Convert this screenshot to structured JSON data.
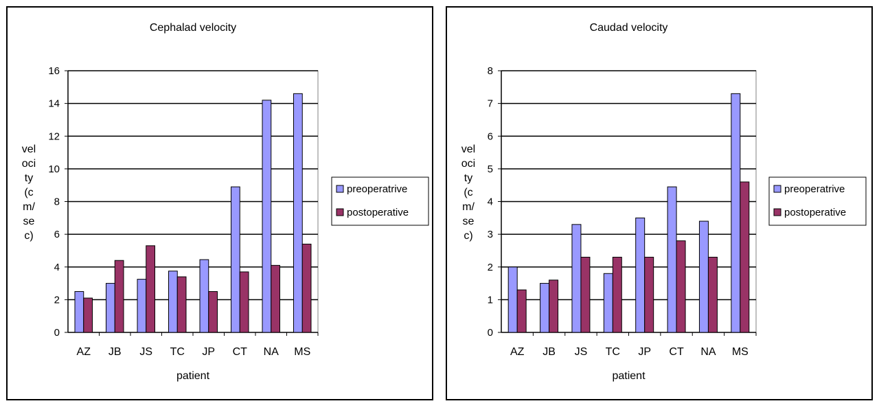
{
  "chart_data": [
    {
      "type": "bar",
      "title": "Cephalad velocity",
      "xlabel": "patient",
      "ylabel_lines": [
        "vel",
        "oci",
        "ty",
        "(c",
        "m/",
        "se",
        "c)"
      ],
      "categories": [
        "AZ",
        "JB",
        "JS",
        "TC",
        "JP",
        "CT",
        "NA",
        "MS"
      ],
      "ylim": [
        0,
        16
      ],
      "yticks": [
        "0",
        "2",
        "4",
        "6",
        "8",
        "10",
        "12",
        "14",
        "16"
      ],
      "ytick_values": [
        0,
        2,
        4,
        6,
        8,
        10,
        12,
        14,
        16
      ],
      "grid": true,
      "legend_position": "right",
      "series": [
        {
          "name": "preoperatrive",
          "color": "#9999ff",
          "values": [
            2.5,
            3.0,
            3.25,
            3.75,
            4.45,
            8.9,
            14.2,
            14.6
          ]
        },
        {
          "name": "postoperative",
          "color": "#993366",
          "values": [
            2.1,
            4.4,
            5.3,
            3.4,
            2.5,
            3.7,
            4.1,
            5.4
          ]
        }
      ]
    },
    {
      "type": "bar",
      "title": "Caudad velocity",
      "xlabel": "patient",
      "ylabel_lines": [
        "vel",
        "oci",
        "ty",
        "(c",
        "m/",
        "se",
        "c)"
      ],
      "categories": [
        "AZ",
        "JB",
        "JS",
        "TC",
        "JP",
        "CT",
        "NA",
        "MS"
      ],
      "ylim": [
        0,
        8
      ],
      "yticks": [
        "0",
        "1",
        "2",
        "3",
        "4",
        "5",
        "6",
        "7",
        "8"
      ],
      "ytick_values": [
        0,
        1,
        2,
        3,
        4,
        5,
        6,
        7,
        8
      ],
      "grid": true,
      "legend_position": "right",
      "series": [
        {
          "name": "preoperatrive",
          "color": "#9999ff",
          "values": [
            2.0,
            1.5,
            3.3,
            1.8,
            3.5,
            4.45,
            3.4,
            7.3
          ]
        },
        {
          "name": "postoperative",
          "color": "#993366",
          "values": [
            1.3,
            1.6,
            2.3,
            2.3,
            2.3,
            2.8,
            2.3,
            4.6
          ]
        }
      ]
    }
  ]
}
